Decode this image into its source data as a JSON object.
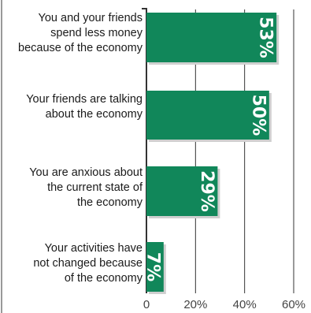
{
  "chart_data": {
    "type": "bar",
    "orientation": "horizontal",
    "categories": [
      [
        "You and your friends",
        "spend less money",
        "because of the economy"
      ],
      [
        "Your friends are talking",
        "about the economy"
      ],
      [
        "You are anxious about",
        "the current state of",
        "the economy"
      ],
      [
        "Your activities have",
        "not changed because",
        "of the economy"
      ]
    ],
    "values": [
      53,
      50,
      29,
      7
    ],
    "value_labels": [
      "53%",
      "50%",
      "29%",
      "7%"
    ],
    "xlim": [
      0,
      65
    ],
    "ticks": [
      0,
      20,
      40,
      60
    ],
    "tick_labels": [
      "0",
      "20%",
      "40%",
      "60%"
    ],
    "grid": true,
    "colors": {
      "bar": "#11875a",
      "shadow": "#cfcfcf",
      "grid": "#333333",
      "text": "#1a1a1a"
    }
  }
}
